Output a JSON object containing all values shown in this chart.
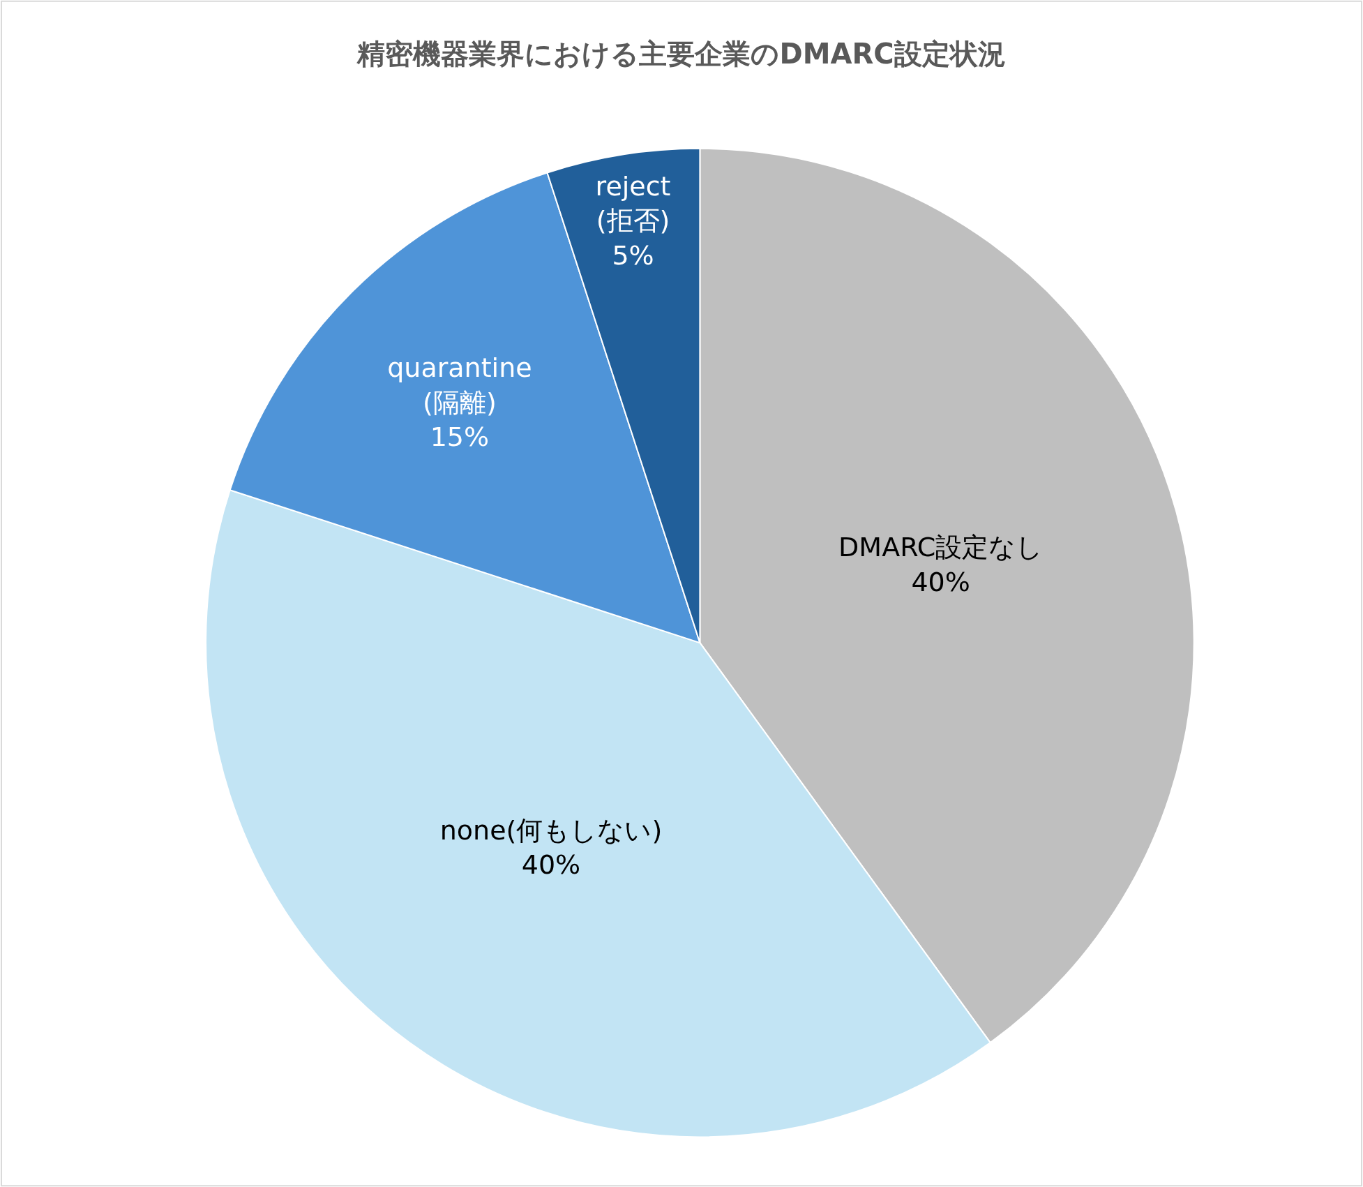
{
  "chart_data": {
    "type": "pie",
    "title": "精密機器業界における主要企業のDMARC設定状況",
    "categories": [
      "DMARC設定なし",
      "none(何もしない)",
      "quarantine\n(隔離)",
      "reject\n(拒否)"
    ],
    "values": [
      40,
      40,
      15,
      5
    ],
    "value_labels": [
      "40%",
      "40%",
      "15%",
      "5%"
    ],
    "colors": [
      "#bfbfbf",
      "#c2e4f4",
      "#4f94d8",
      "#215f9a"
    ],
    "legend": false
  }
}
